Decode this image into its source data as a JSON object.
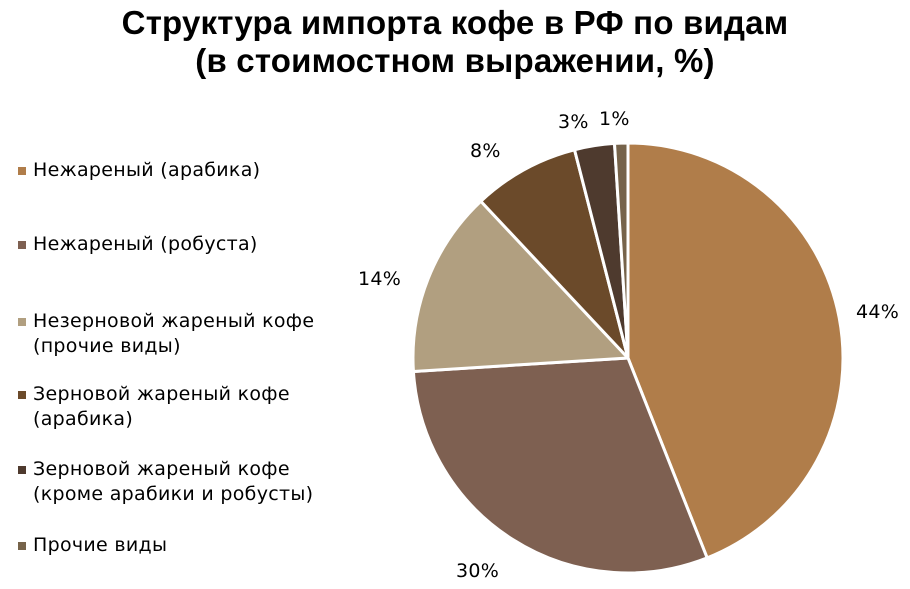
{
  "title": {
    "line1": "Структура импорта кофе в РФ по видам",
    "line2": "(в стоимостном выражении, %)"
  },
  "legend": {
    "items": [
      {
        "label": "Нежареный (арабика)",
        "color": "#B07D4A"
      },
      {
        "label": "Нежареный (робуста)",
        "color": "#7E6051"
      },
      {
        "label": "Незерновой жареный кофе\n(прочие виды)",
        "color": "#B19F80"
      },
      {
        "label": "Зерновой жареный кофе\n(арабика)",
        "color": "#6B4A2A"
      },
      {
        "label": "Зерновой жареный кофе\n(кроме арабики и робусты)",
        "color": "#4E3A2E"
      },
      {
        "label": "Прочие виды",
        "color": "#76634A"
      }
    ]
  },
  "data_labels": [
    "44%",
    "30%",
    "14%",
    "8%",
    "3%",
    "1%"
  ],
  "chart_data": {
    "type": "pie",
    "title": "Структура импорта кофе в РФ по видам (в стоимостном выражении, %)",
    "categories": [
      "Нежареный (арабика)",
      "Нежареный (робуста)",
      "Незерновой жареный кофе (прочие виды)",
      "Зерновой жареный кофе (арабика)",
      "Зерновой жареный кофе (кроме арабики и робусты)",
      "Прочие виды"
    ],
    "values": [
      44,
      30,
      14,
      8,
      3,
      1
    ],
    "colors": [
      "#B07D4A",
      "#7E6051",
      "#B19F80",
      "#6B4A2A",
      "#4E3A2E",
      "#76634A"
    ],
    "unit": "%",
    "start_angle": "12 o'clock",
    "direction": "clockwise",
    "legend_position": "left",
    "data_labels": "outside"
  }
}
